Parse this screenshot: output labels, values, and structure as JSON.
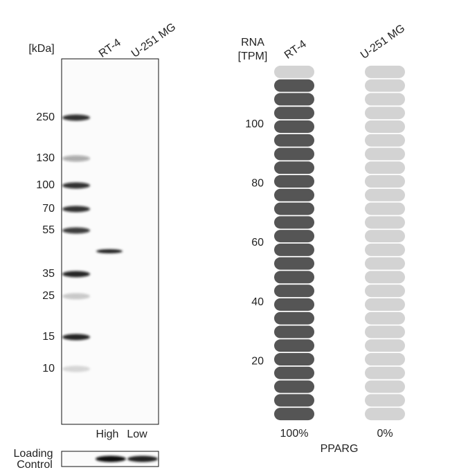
{
  "blot": {
    "unit": "[kDa]",
    "lanes": [
      "RT-4",
      "U-251 MG"
    ],
    "markers": [
      250,
      130,
      100,
      70,
      55,
      35,
      25,
      15,
      10
    ],
    "lane_levels": [
      "High",
      "Low"
    ],
    "loading_control": [
      "Loading",
      "Control"
    ]
  },
  "rna": {
    "header": [
      "RNA",
      "[TPM]"
    ],
    "samples": [
      "RT-4",
      "U-251 MG"
    ],
    "values": [
      115,
      0
    ],
    "value_labels": [
      "100%",
      "0%"
    ],
    "ylim": [
      0,
      120
    ],
    "yticks": [
      20,
      40,
      60,
      80,
      100
    ],
    "gene": "PPARG",
    "color": "#555555",
    "empty_color": "#d3d3d3"
  }
}
